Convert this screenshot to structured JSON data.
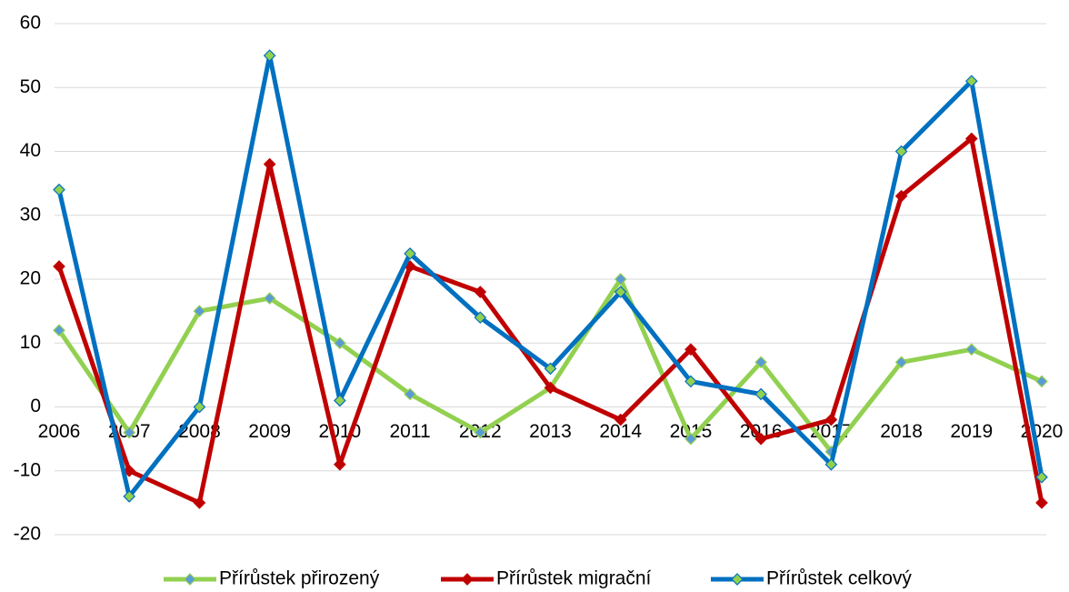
{
  "chart_data": {
    "type": "line",
    "categories": [
      "2006",
      "2007",
      "2008",
      "2009",
      "2010",
      "2011",
      "2012",
      "2013",
      "2014",
      "2015",
      "2016",
      "2017",
      "2018",
      "2019",
      "2020"
    ],
    "series": [
      {
        "name": "Přírůstek přirozený",
        "color": "#92d050",
        "marker_color": "#5b9bd5",
        "values": [
          12,
          -4,
          15,
          17,
          10,
          2,
          -4,
          3,
          20,
          -5,
          7,
          -7,
          7,
          9,
          4
        ]
      },
      {
        "name": "Přírůstek migrační",
        "color": "#c00000",
        "marker_color": "#c00000",
        "values": [
          22,
          -10,
          -15,
          38,
          -9,
          22,
          18,
          3,
          -2,
          9,
          -5,
          -2,
          33,
          42,
          -15
        ]
      },
      {
        "name": "Přírůstek celkový",
        "color": "#0070c0",
        "marker_color": "#92d050",
        "values": [
          34,
          -14,
          0,
          55,
          1,
          24,
          14,
          6,
          18,
          4,
          2,
          -9,
          40,
          51,
          -11
        ]
      }
    ],
    "ylim": [
      -20,
      60
    ],
    "yticks": [
      -20,
      -10,
      0,
      10,
      20,
      30,
      40,
      50,
      60
    ],
    "grid": true,
    "legend": "bottom"
  }
}
